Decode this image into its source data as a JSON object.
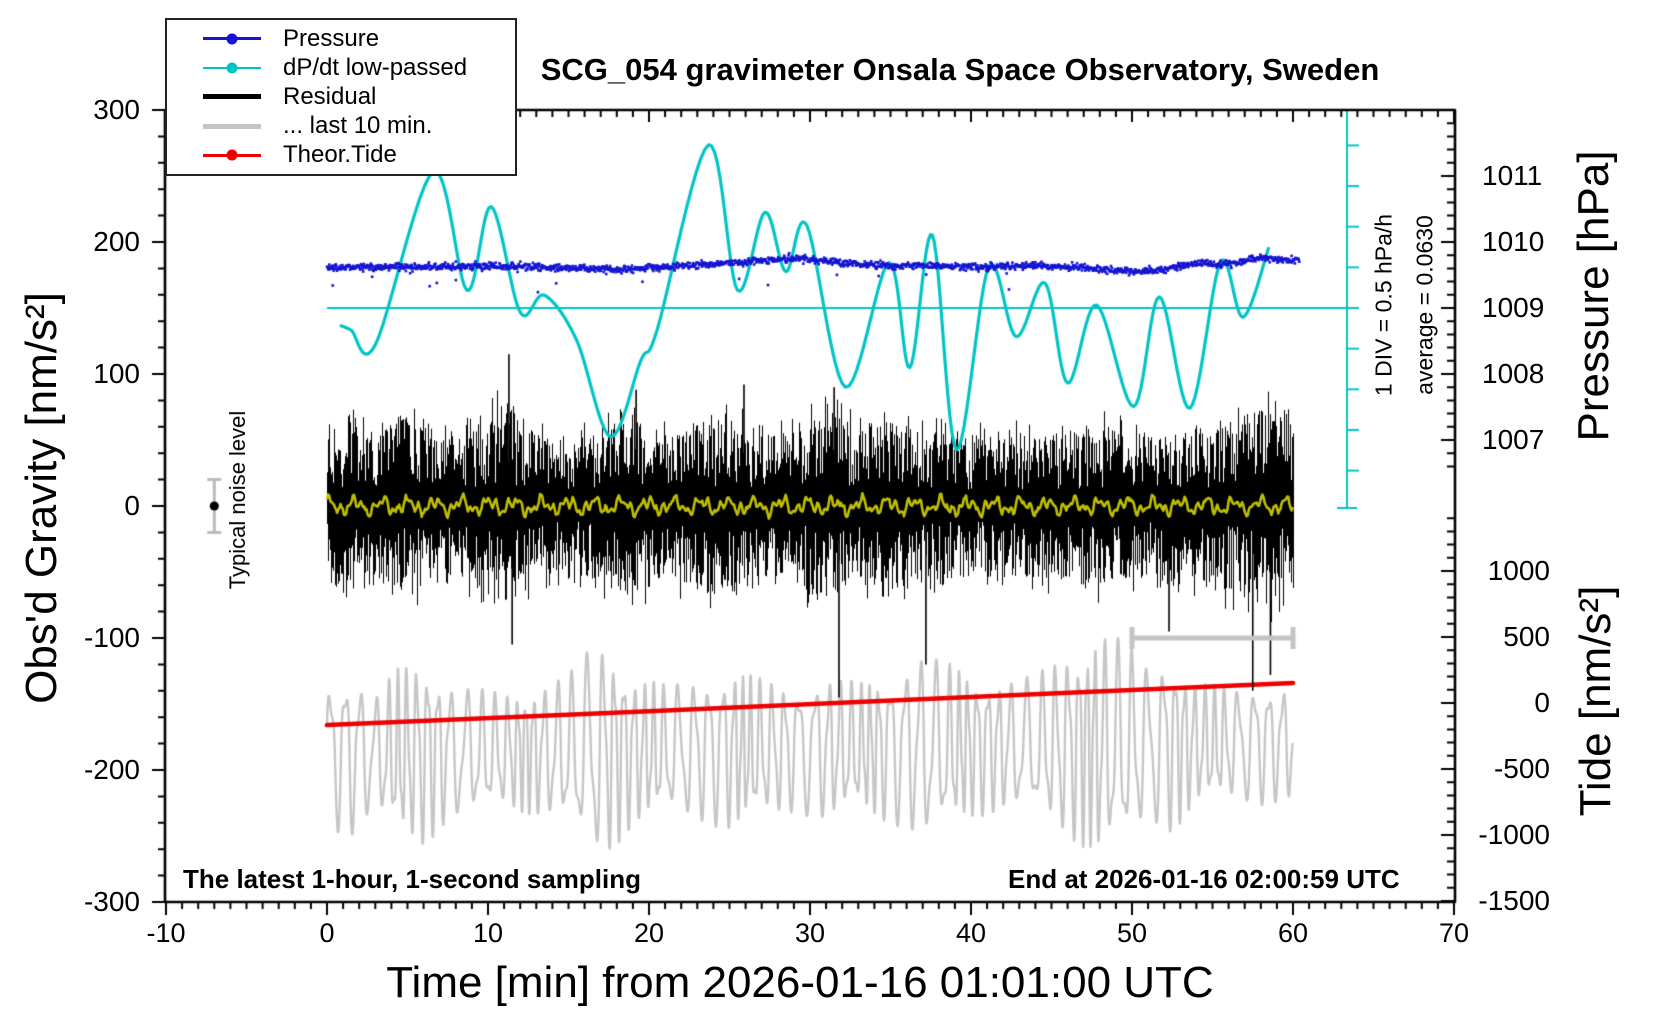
{
  "chart_data": {
    "type": "line",
    "title": "SCG_054 gravimeter Onsala Space Observatory, Sweden",
    "xlabel": "Time [min] from 2026-01-16 01:01:00 UTC",
    "x_range": [
      -10,
      70
    ],
    "x_major_ticks": [
      -10,
      0,
      10,
      20,
      30,
      40,
      50,
      60,
      70
    ],
    "x_minor_step": 1,
    "grid": false,
    "legend_position": "top-left",
    "axes": {
      "gravity": {
        "label": "Obs'd Gravity [nm/s²]",
        "range": [
          -300,
          300
        ],
        "major_ticks": [
          300,
          200,
          100,
          0,
          -100,
          -200,
          -300
        ],
        "minor_step": 20
      },
      "pressure": {
        "label": "Pressure [hPa]",
        "major_ticks": [
          1011,
          1010,
          1009,
          1008,
          1007
        ],
        "minor_step": 0.2,
        "ref_value": 1009
      },
      "tide": {
        "label": "Tide [nm/s²]",
        "major_ticks": [
          1000,
          500,
          0,
          -500,
          -1000,
          -1500
        ],
        "minor_step": 100
      },
      "dpdt": {
        "scale_note": "1 DIV = 0.5 hPa/h",
        "average_note": "average = 0.0630",
        "average": 0.063,
        "div_value_hpa_per_h": 0.5,
        "divisions": 10
      }
    },
    "legend": [
      {
        "label": "Pressure",
        "swatch": "line-dot",
        "color": "#1414d2"
      },
      {
        "label": "dP/dt low-passed",
        "swatch": "line-dot",
        "color": "#00c4c4"
      },
      {
        "label": "Residual",
        "swatch": "thick-line",
        "color": "#000000"
      },
      {
        "label": "... last 10 min.",
        "swatch": "thick-line",
        "color": "#c4c4c4"
      },
      {
        "label": "Theor.Tide",
        "swatch": "line-dot",
        "color": "#ee0000"
      }
    ],
    "series": [
      {
        "name": "Pressure",
        "axis": "pressure",
        "color": "#1414d2",
        "style": "noisy-dots",
        "noise_sd_hpa": 0.05,
        "keypoints": [
          [
            0,
            1009.61
          ],
          [
            5,
            1009.62
          ],
          [
            10,
            1009.64
          ],
          [
            14,
            1009.61
          ],
          [
            18,
            1009.58
          ],
          [
            22,
            1009.64
          ],
          [
            26,
            1009.7
          ],
          [
            29,
            1009.76
          ],
          [
            32,
            1009.68
          ],
          [
            35,
            1009.64
          ],
          [
            38,
            1009.64
          ],
          [
            41,
            1009.62
          ],
          [
            44,
            1009.64
          ],
          [
            47,
            1009.61
          ],
          [
            50,
            1009.55
          ],
          [
            52,
            1009.58
          ],
          [
            54,
            1009.68
          ],
          [
            56,
            1009.67
          ],
          [
            58,
            1009.76
          ],
          [
            60,
            1009.73
          ]
        ]
      },
      {
        "name": "dP/dt low-passed",
        "axis": "dpdt",
        "color": "#00c4c4",
        "style": "smooth-line",
        "keypoints": [
          [
            0.8,
            -0.15
          ],
          [
            1.5,
            -0.21
          ],
          [
            3,
            -0.39
          ],
          [
            6.6,
            1.74
          ],
          [
            8.7,
            0.28
          ],
          [
            10.2,
            1.31
          ],
          [
            12,
            0.01
          ],
          [
            13.5,
            0.22
          ],
          [
            15.5,
            -0.33
          ],
          [
            17.6,
            -1.52
          ],
          [
            19.5,
            -0.58
          ],
          [
            20.5,
            -0.21
          ],
          [
            23.7,
            2.07
          ],
          [
            25.5,
            0.28
          ],
          [
            27.2,
            1.24
          ],
          [
            28.5,
            0.51
          ],
          [
            29.8,
            1.08
          ],
          [
            32.2,
            -0.91
          ],
          [
            34.9,
            0.62
          ],
          [
            36.2,
            -0.67
          ],
          [
            37.6,
            0.96
          ],
          [
            39.1,
            -1.68
          ],
          [
            41.1,
            0.57
          ],
          [
            42.8,
            -0.29
          ],
          [
            44.6,
            0.37
          ],
          [
            46,
            -0.86
          ],
          [
            47.8,
            0.1
          ],
          [
            50.1,
            -1.15
          ],
          [
            51.7,
            0.2
          ],
          [
            53.6,
            -1.17
          ],
          [
            55.5,
            0.63
          ],
          [
            56.9,
            -0.05
          ],
          [
            58.5,
            0.81
          ]
        ]
      },
      {
        "name": "Residual",
        "axis": "gravity",
        "color": "#000000",
        "style": "noise-band",
        "center": 0,
        "envelope": [
          [
            0,
            52
          ],
          [
            1,
            66
          ],
          [
            3,
            56
          ],
          [
            5,
            68
          ],
          [
            7,
            50
          ],
          [
            9,
            60
          ],
          [
            11,
            78
          ],
          [
            13,
            54
          ],
          [
            15,
            50
          ],
          [
            17,
            60
          ],
          [
            19,
            70
          ],
          [
            21,
            54
          ],
          [
            23,
            64
          ],
          [
            25,
            70
          ],
          [
            27,
            54
          ],
          [
            29,
            60
          ],
          [
            31,
            76
          ],
          [
            33,
            58
          ],
          [
            35,
            64
          ],
          [
            37,
            58
          ],
          [
            39,
            54
          ],
          [
            42,
            54
          ],
          [
            45,
            56
          ],
          [
            48,
            62
          ],
          [
            51,
            54
          ],
          [
            54,
            58
          ],
          [
            57,
            72
          ],
          [
            58.5,
            76
          ],
          [
            60,
            58
          ]
        ],
        "spikes": [
          [
            11.3,
            115
          ],
          [
            11.5,
            -105
          ],
          [
            19.2,
            88
          ],
          [
            25.9,
            92
          ],
          [
            31.5,
            90
          ],
          [
            31.8,
            -145
          ],
          [
            37.2,
            -120
          ],
          [
            52.3,
            -95
          ],
          [
            57.5,
            -140
          ],
          [
            58.6,
            -128
          ]
        ]
      },
      {
        "name": "Residual low-passed",
        "axis": "gravity",
        "color": "#bfbf00",
        "style": "small-wiggle",
        "center": 0,
        "amplitude": 5
      },
      {
        "name": "... last 10 min.",
        "axis": "tide",
        "color": "#c6c6c6",
        "style": "oscillation",
        "period_min": 0.9,
        "center_keypoints": [
          [
            0,
            -380
          ],
          [
            30,
            -340
          ],
          [
            60,
            -300
          ]
        ],
        "envelope": [
          [
            0,
            560
          ],
          [
            1.5,
            620
          ],
          [
            3,
            430
          ],
          [
            4.5,
            640
          ],
          [
            6,
            700
          ],
          [
            7.5,
            520
          ],
          [
            9,
            480
          ],
          [
            11,
            430
          ],
          [
            13,
            480
          ],
          [
            15,
            560
          ],
          [
            16.5,
            800
          ],
          [
            17.5,
            780
          ],
          [
            19,
            560
          ],
          [
            21,
            480
          ],
          [
            23,
            540
          ],
          [
            25,
            600
          ],
          [
            27,
            520
          ],
          [
            29,
            480
          ],
          [
            31,
            540
          ],
          [
            33,
            480
          ],
          [
            35,
            560
          ],
          [
            37,
            700
          ],
          [
            38.5,
            620
          ],
          [
            40,
            540
          ],
          [
            42,
            480
          ],
          [
            44,
            520
          ],
          [
            46,
            700
          ],
          [
            48,
            820
          ],
          [
            49.5,
            780
          ],
          [
            51,
            600
          ],
          [
            52.5,
            660
          ],
          [
            54,
            460
          ],
          [
            56,
            420
          ],
          [
            58,
            460
          ],
          [
            60,
            430
          ]
        ]
      },
      {
        "name": "Theor.Tide",
        "axis": "tide",
        "color": "#ee0000",
        "style": "thick-line",
        "keypoints": [
          [
            0,
            -167
          ],
          [
            20,
            -62
          ],
          [
            40,
            45
          ],
          [
            60,
            152
          ]
        ]
      }
    ],
    "markers": {
      "noise_marker": {
        "label": "Typical noise level",
        "t": -7,
        "value": 0,
        "error": 20,
        "dot_color": "#000000",
        "bar_color": "#bbbbbb"
      },
      "last10_bar": {
        "t_start": 50,
        "t_end": 60,
        "gravity_value": -100,
        "color": "#c4c4c4"
      },
      "average_line": {
        "t_start": 0,
        "value_label": "average",
        "color": "#00c4c4"
      }
    },
    "annotations": {
      "sampling_note": "The latest 1-hour, 1-second sampling",
      "end_note": "End at 2026-01-16 02:00:59 UTC"
    }
  }
}
